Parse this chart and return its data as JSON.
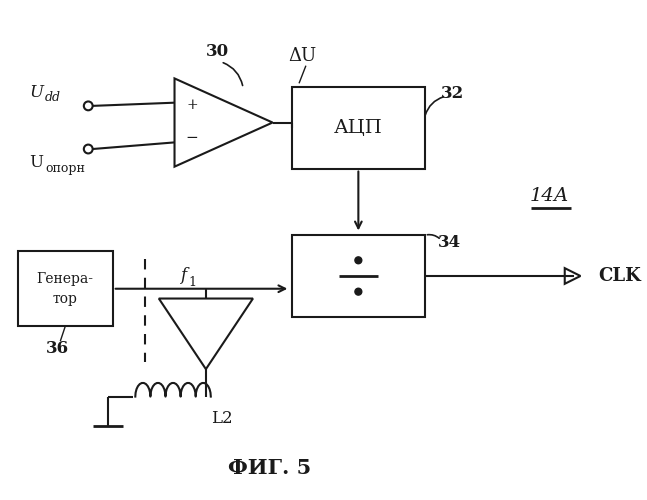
{
  "title": "ФИГ. 5",
  "label_14A": "14А",
  "label_CLK": "CLK",
  "label_Udd": "U",
  "label_Udd_sub": "dd",
  "label_Uoporn": "U",
  "label_Uoporn_sub": "опорн",
  "label_deltaU": "ΔU",
  "label_30": "30",
  "label_32": "32",
  "label_34": "34",
  "label_36": "36",
  "label_f1": "f",
  "label_f1_sub": "1",
  "label_L2": "L2",
  "label_ADC": "АЦП",
  "label_GEN1": "Генера-",
  "label_GEN2": "тор",
  "bg_color": "#ffffff",
  "line_color": "#1a1a1a"
}
